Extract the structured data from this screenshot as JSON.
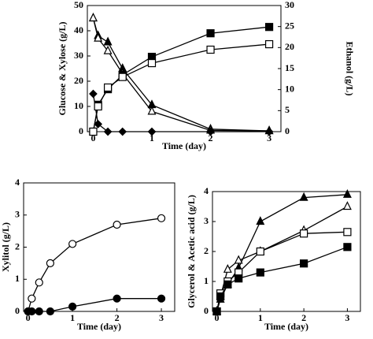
{
  "chart_data": [
    {
      "type": "line",
      "x": [
        0,
        0.083,
        0.25,
        0.5,
        1,
        2,
        3
      ],
      "xlabel": "Time (day)",
      "ylabel": "Glucose & Xylose (g/L)",
      "y2label": "Ethanol (g/L)",
      "xlim": [
        -0.1,
        3.2
      ],
      "xticks": [
        0,
        1,
        2,
        3
      ],
      "ylim": [
        0,
        50
      ],
      "yticks": [
        0,
        10,
        20,
        30,
        40,
        50
      ],
      "y2lim": [
        0,
        30
      ],
      "y2ticks": [
        0,
        5,
        10,
        15,
        20,
        25,
        30
      ],
      "series": [
        {
          "marker": "triangle",
          "color": "#000000",
          "values": [
            45,
            38,
            35.5,
            25,
            10.6,
            1,
            0.3
          ]
        },
        {
          "marker": "triangle-open",
          "color": "#000000",
          "values": [
            45,
            37,
            32,
            23,
            8,
            0.5,
            0.3
          ]
        },
        {
          "marker": "diamond",
          "color": "#000000",
          "values": [
            15,
            3,
            0,
            0,
            0,
            0,
            0
          ]
        },
        {
          "marker": "square",
          "color": "#000000",
          "axis": "y2",
          "values": [
            0,
            6.4,
            10.1,
            13.5,
            17.8,
            23.4,
            24.9
          ]
        },
        {
          "marker": "square-open",
          "color": "#000000",
          "axis": "y2",
          "values": [
            0,
            6,
            10.5,
            13,
            16.3,
            19.5,
            20.8
          ]
        }
      ]
    },
    {
      "type": "line",
      "x": [
        0,
        0.083,
        0.25,
        0.5,
        1,
        2,
        3
      ],
      "xlabel": "Time (day)",
      "ylabel": "Xylitol (g/L)",
      "xlim": [
        -0.1,
        3.3
      ],
      "xticks": [
        0,
        1,
        2,
        3
      ],
      "ylim": [
        0,
        4
      ],
      "yticks": [
        0,
        1,
        2,
        3,
        4
      ],
      "series": [
        {
          "marker": "circle-open",
          "color": "#000000",
          "values": [
            0,
            0.4,
            0.9,
            1.5,
            2.1,
            2.7,
            2.9
          ]
        },
        {
          "marker": "circle",
          "color": "#000000",
          "values": [
            0,
            0,
            0,
            0,
            0.15,
            0.4,
            0.4
          ]
        }
      ]
    },
    {
      "type": "line",
      "x": [
        0,
        0.083,
        0.25,
        0.5,
        1,
        2,
        3
      ],
      "xlabel": "Time (day)",
      "ylabel": "Glycerol & Acetic acid (g/L)",
      "xlim": [
        -0.1,
        3.3
      ],
      "xticks": [
        0,
        1,
        2,
        3
      ],
      "ylim": [
        0,
        4
      ],
      "yticks": [
        0,
        1,
        2,
        3,
        4
      ],
      "series": [
        {
          "marker": "triangle",
          "color": "#000000",
          "values": [
            0,
            0.4,
            0.9,
            1.45,
            3.0,
            3.8,
            3.9
          ]
        },
        {
          "marker": "triangle-open",
          "color": "#000000",
          "values": [
            0,
            0.5,
            1.4,
            1.7,
            2.0,
            2.7,
            3.5
          ]
        },
        {
          "marker": "square-open",
          "color": "#000000",
          "values": [
            0,
            0.6,
            1.0,
            1.3,
            2.0,
            2.6,
            2.65
          ]
        },
        {
          "marker": "square",
          "color": "#000000",
          "values": [
            0,
            0.5,
            0.9,
            1.1,
            1.3,
            1.6,
            2.15
          ]
        }
      ]
    }
  ]
}
